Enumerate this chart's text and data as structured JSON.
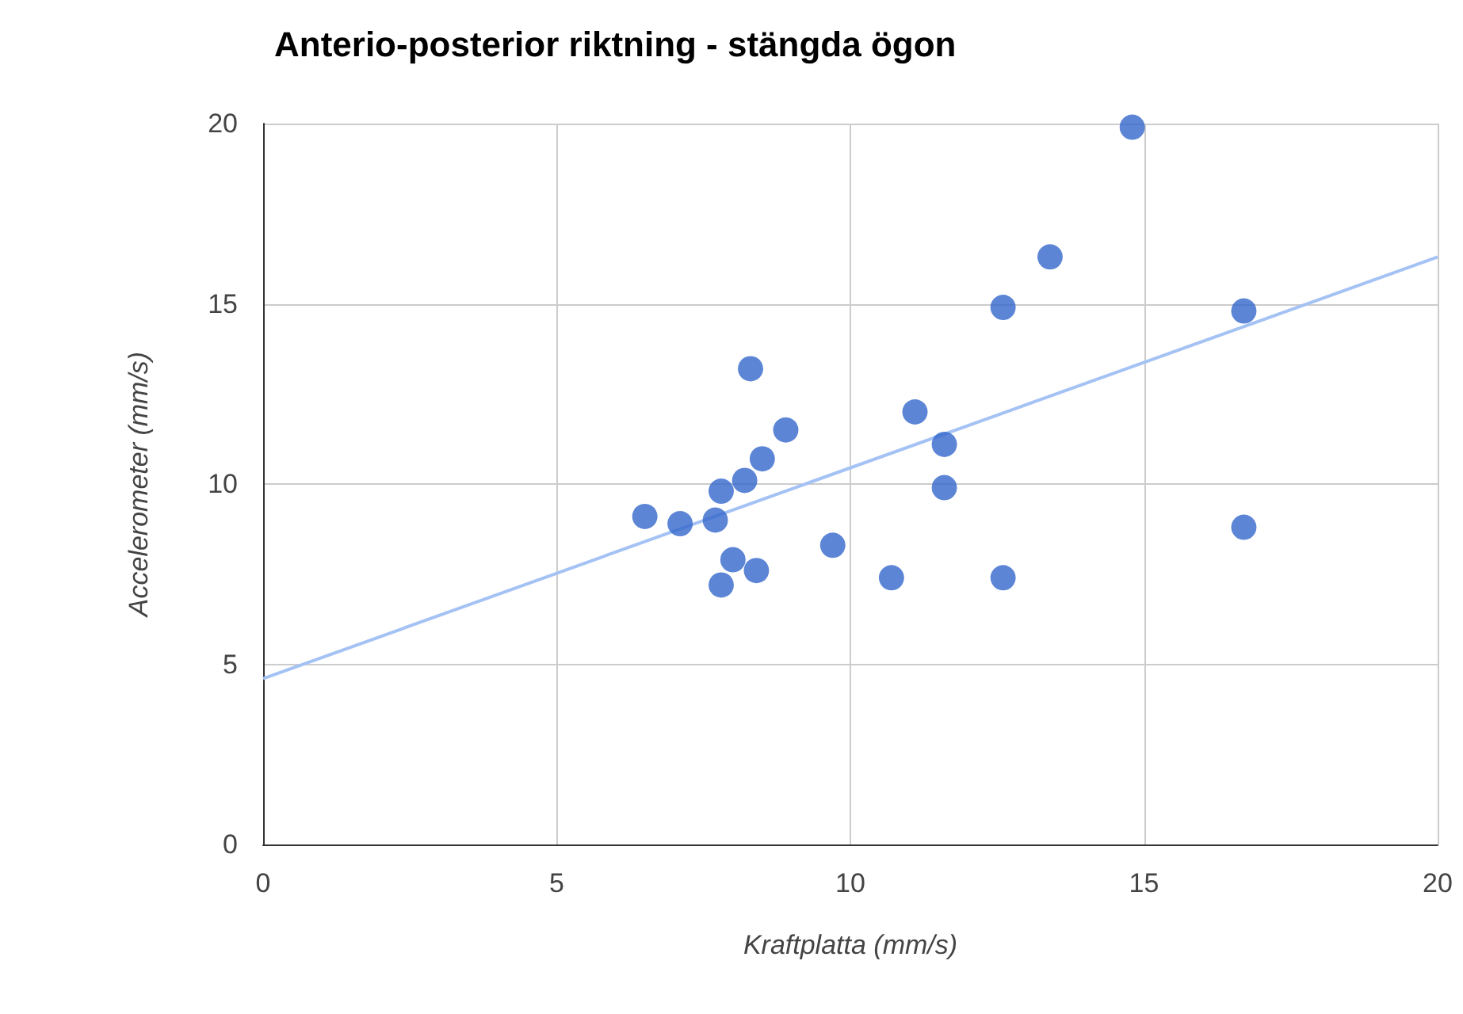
{
  "chart_data": {
    "type": "scatter",
    "title": "Anterio-posterior riktning - stängda ögon",
    "xlabel": "Kraftplatta (mm/s)",
    "ylabel": "Accelerometer (mm/s)",
    "x": [
      6.5,
      7.1,
      7.7,
      7.8,
      7.8,
      8.0,
      8.2,
      8.3,
      8.4,
      8.5,
      8.9,
      9.7,
      10.7,
      11.1,
      11.6,
      11.6,
      12.6,
      12.6,
      13.4,
      14.8,
      16.7,
      16.7
    ],
    "series": [
      {
        "color": "#3366cc",
        "values": [
          9.1,
          8.9,
          9.0,
          9.8,
          7.2,
          7.9,
          10.1,
          13.2,
          7.6,
          10.7,
          11.5,
          8.3,
          7.4,
          12.0,
          9.9,
          11.1,
          14.9,
          7.4,
          16.3,
          19.9,
          14.8,
          8.8
        ]
      },
      {
        "type": "line",
        "color": "#a4c2f4",
        "x": [
          0,
          20
        ],
        "values": [
          4.6,
          16.3
        ],
        "marker": "none"
      }
    ],
    "xlim": [
      0,
      20
    ],
    "xticks": [
      0,
      5,
      10,
      15,
      20
    ],
    "ylim": [
      0,
      20
    ],
    "yticks": [
      0,
      5,
      10,
      15,
      20
    ],
    "grid": true,
    "marker": "circle"
  }
}
